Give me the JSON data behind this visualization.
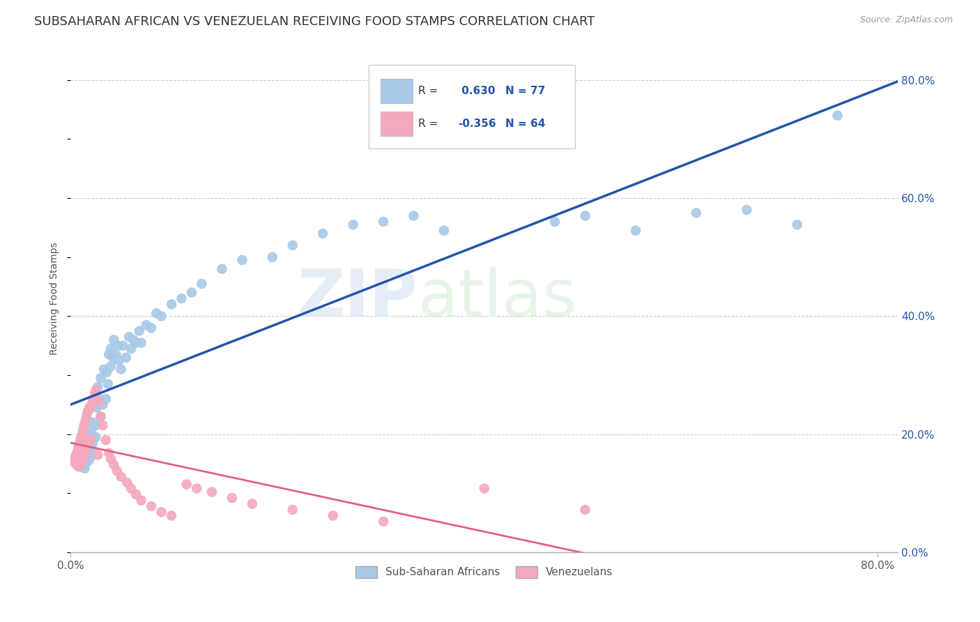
{
  "title": "SUBSAHARAN AFRICAN VS VENEZUELAN RECEIVING FOOD STAMPS CORRELATION CHART",
  "source": "Source: ZipAtlas.com",
  "ylabel": "Receiving Food Stamps",
  "xlim": [
    0,
    0.82
  ],
  "ylim": [
    0.0,
    0.86
  ],
  "xtick_positions": [
    0.0,
    0.8
  ],
  "xtick_labels": [
    "0.0%",
    "80.0%"
  ],
  "ytick_positions": [
    0.0,
    0.2,
    0.4,
    0.6,
    0.8
  ],
  "ytick_labels_right": [
    "0.0%",
    "20.0%",
    "40.0%",
    "60.0%",
    "80.0%"
  ],
  "blue_color": "#a8c8e8",
  "pink_color": "#f4a8bc",
  "blue_line_color": "#2255aa",
  "pink_line_color": "#e06080",
  "R_blue": 0.63,
  "N_blue": 77,
  "R_pink": -0.356,
  "N_pink": 64,
  "legend_label_blue": "Sub-Saharan Africans",
  "legend_label_pink": "Venezuelans",
  "watermark_zip": "ZIP",
  "watermark_atlas": "atlas",
  "background_color": "#ffffff",
  "grid_color": "#cccccc",
  "title_fontsize": 13,
  "axis_label_fontsize": 10,
  "tick_fontsize": 11,
  "source_fontsize": 9,
  "blue_scatter_x": [
    0.005,
    0.007,
    0.008,
    0.009,
    0.01,
    0.01,
    0.012,
    0.013,
    0.014,
    0.014,
    0.015,
    0.015,
    0.016,
    0.017,
    0.018,
    0.018,
    0.019,
    0.02,
    0.02,
    0.021,
    0.021,
    0.022,
    0.022,
    0.023,
    0.025,
    0.025,
    0.026,
    0.027,
    0.028,
    0.03,
    0.03,
    0.032,
    0.033,
    0.035,
    0.036,
    0.037,
    0.038,
    0.04,
    0.04,
    0.042,
    0.043,
    0.045,
    0.047,
    0.048,
    0.05,
    0.052,
    0.055,
    0.058,
    0.06,
    0.062,
    0.065,
    0.068,
    0.07,
    0.075,
    0.08,
    0.085,
    0.09,
    0.1,
    0.11,
    0.12,
    0.13,
    0.15,
    0.17,
    0.2,
    0.22,
    0.25,
    0.28,
    0.31,
    0.34,
    0.37,
    0.48,
    0.51,
    0.56,
    0.62,
    0.67,
    0.72,
    0.76
  ],
  "blue_scatter_y": [
    0.155,
    0.158,
    0.148,
    0.162,
    0.145,
    0.165,
    0.152,
    0.168,
    0.142,
    0.172,
    0.15,
    0.185,
    0.175,
    0.16,
    0.155,
    0.195,
    0.17,
    0.162,
    0.2,
    0.175,
    0.21,
    0.185,
    0.22,
    0.195,
    0.195,
    0.215,
    0.245,
    0.28,
    0.26,
    0.23,
    0.295,
    0.25,
    0.31,
    0.26,
    0.305,
    0.285,
    0.335,
    0.315,
    0.345,
    0.33,
    0.36,
    0.335,
    0.35,
    0.325,
    0.31,
    0.35,
    0.33,
    0.365,
    0.345,
    0.36,
    0.355,
    0.375,
    0.355,
    0.385,
    0.38,
    0.405,
    0.4,
    0.42,
    0.43,
    0.44,
    0.455,
    0.48,
    0.495,
    0.5,
    0.52,
    0.54,
    0.555,
    0.56,
    0.57,
    0.545,
    0.56,
    0.57,
    0.545,
    0.575,
    0.58,
    0.555,
    0.74
  ],
  "pink_scatter_x": [
    0.003,
    0.004,
    0.005,
    0.006,
    0.006,
    0.007,
    0.007,
    0.008,
    0.008,
    0.009,
    0.009,
    0.01,
    0.01,
    0.011,
    0.011,
    0.012,
    0.012,
    0.013,
    0.013,
    0.014,
    0.014,
    0.015,
    0.015,
    0.016,
    0.016,
    0.017,
    0.017,
    0.018,
    0.018,
    0.019,
    0.019,
    0.02,
    0.021,
    0.022,
    0.023,
    0.024,
    0.025,
    0.027,
    0.028,
    0.03,
    0.032,
    0.035,
    0.038,
    0.04,
    0.043,
    0.046,
    0.05,
    0.056,
    0.06,
    0.065,
    0.07,
    0.08,
    0.09,
    0.1,
    0.115,
    0.125,
    0.14,
    0.16,
    0.18,
    0.22,
    0.26,
    0.31,
    0.41,
    0.51
  ],
  "pink_scatter_y": [
    0.158,
    0.152,
    0.162,
    0.148,
    0.168,
    0.155,
    0.172,
    0.145,
    0.178,
    0.162,
    0.185,
    0.148,
    0.192,
    0.155,
    0.198,
    0.165,
    0.205,
    0.158,
    0.212,
    0.168,
    0.218,
    0.172,
    0.225,
    0.178,
    0.232,
    0.182,
    0.238,
    0.185,
    0.242,
    0.189,
    0.246,
    0.192,
    0.248,
    0.255,
    0.26,
    0.268,
    0.275,
    0.165,
    0.255,
    0.23,
    0.215,
    0.19,
    0.168,
    0.158,
    0.148,
    0.138,
    0.128,
    0.118,
    0.108,
    0.098,
    0.088,
    0.078,
    0.068,
    0.062,
    0.115,
    0.108,
    0.102,
    0.092,
    0.082,
    0.072,
    0.062,
    0.052,
    0.108,
    0.072
  ]
}
